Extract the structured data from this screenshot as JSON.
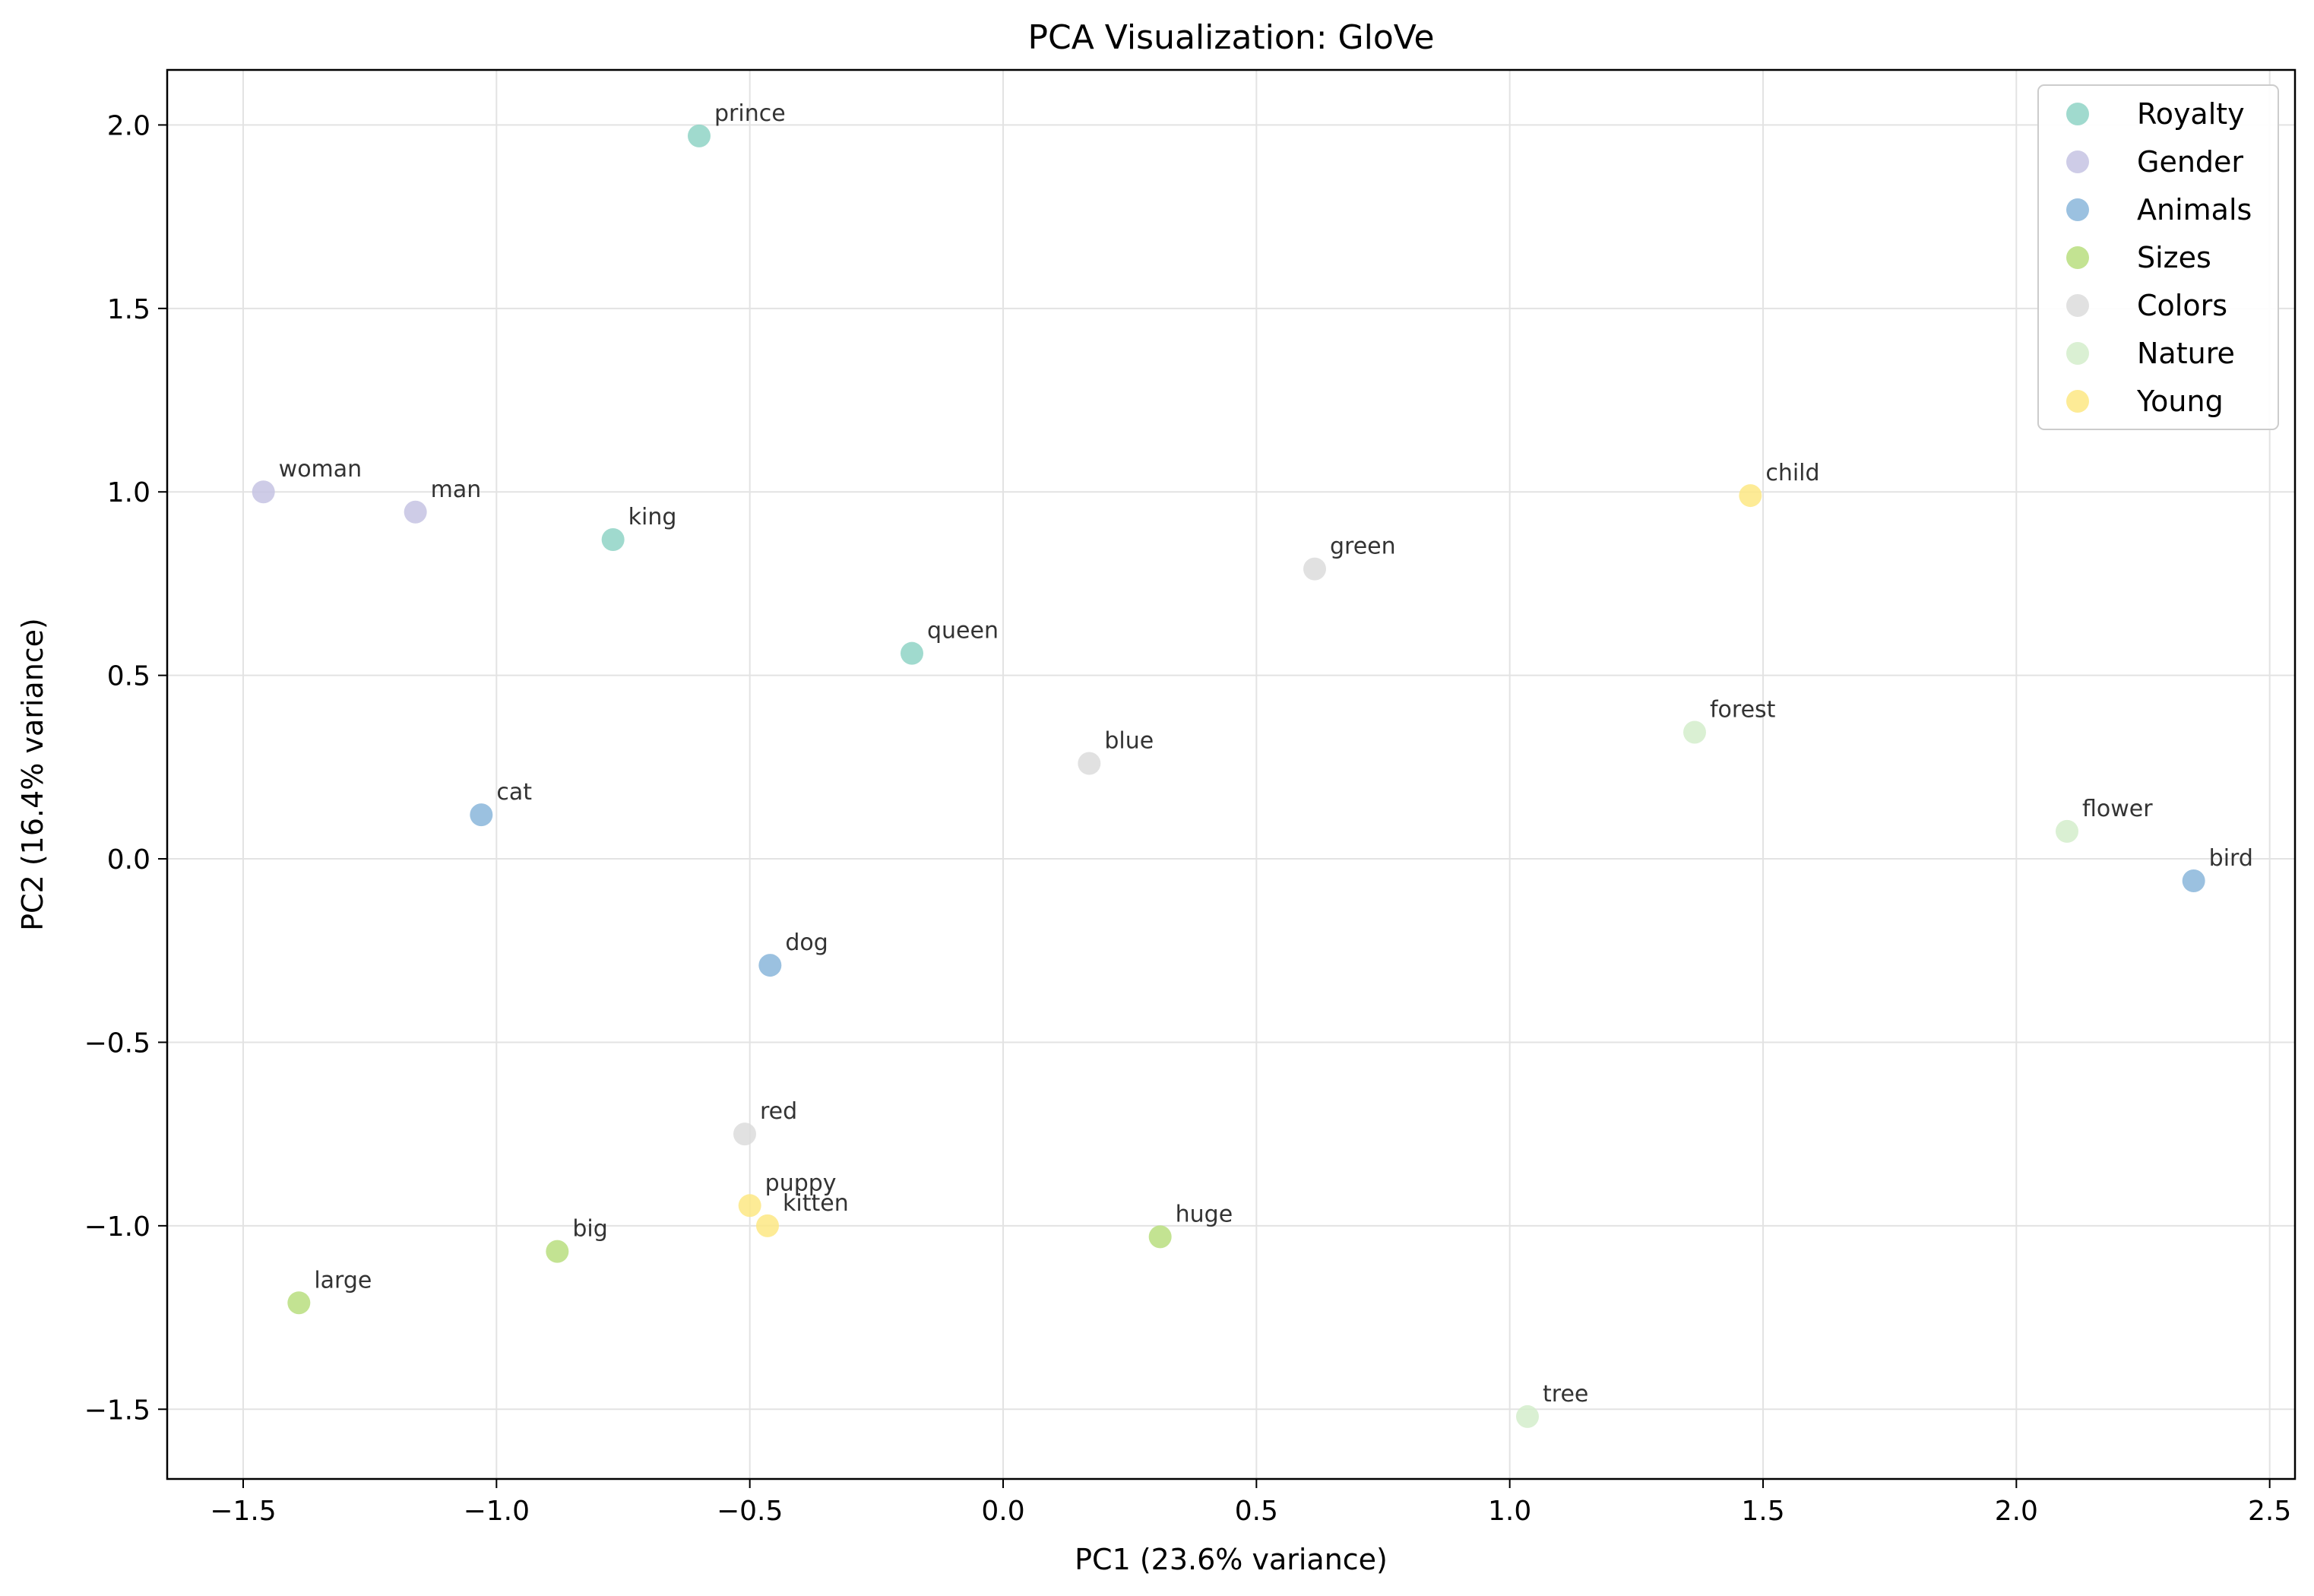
{
  "chart_data": {
    "type": "scatter",
    "title": "PCA Visualization: GloVe",
    "xlabel": "PC1 (23.6% variance)",
    "ylabel": "PC2 (16.4% variance)",
    "xlim": [
      -1.65,
      2.55
    ],
    "ylim": [
      -1.69,
      2.15
    ],
    "xticks": [
      -1.5,
      -1.0,
      -0.5,
      0.0,
      0.5,
      1.0,
      1.5,
      2.0,
      2.5
    ],
    "xtick_labels": [
      "−1.5",
      "−1.0",
      "−0.5",
      "0.0",
      "0.5",
      "1.0",
      "1.5",
      "2.0",
      "2.5"
    ],
    "yticks": [
      -1.5,
      -1.0,
      -0.5,
      0.0,
      0.5,
      1.0,
      1.5,
      2.0
    ],
    "ytick_labels": [
      "−1.5",
      "−1.0",
      "−0.5",
      "0.0",
      "0.5",
      "1.0",
      "1.5",
      "2.0"
    ],
    "grid": true,
    "legend_position": "top-right",
    "series": [
      {
        "name": "Royalty",
        "color": "#8fd3c5",
        "points": [
          {
            "label": "prince",
            "x": -0.6,
            "y": 1.97
          },
          {
            "label": "king",
            "x": -0.77,
            "y": 0.87
          },
          {
            "label": "queen",
            "x": -0.18,
            "y": 0.56
          }
        ]
      },
      {
        "name": "Gender",
        "color": "#c5c3e3",
        "points": [
          {
            "label": "woman",
            "x": -1.46,
            "y": 1.0
          },
          {
            "label": "man",
            "x": -1.16,
            "y": 0.945
          }
        ]
      },
      {
        "name": "Animals",
        "color": "#8ab6db",
        "points": [
          {
            "label": "cat",
            "x": -1.03,
            "y": 0.12
          },
          {
            "label": "dog",
            "x": -0.46,
            "y": -0.29
          },
          {
            "label": "bird",
            "x": 2.35,
            "y": -0.06
          }
        ]
      },
      {
        "name": "Sizes",
        "color": "#b8de7f",
        "points": [
          {
            "label": "big",
            "x": -0.88,
            "y": -1.07
          },
          {
            "label": "large",
            "x": -1.39,
            "y": -1.21
          },
          {
            "label": "huge",
            "x": 0.31,
            "y": -1.03
          }
        ]
      },
      {
        "name": "Colors",
        "color": "#dcdcdc",
        "points": [
          {
            "label": "green",
            "x": 0.615,
            "y": 0.79
          },
          {
            "label": "blue",
            "x": 0.17,
            "y": 0.26
          },
          {
            "label": "red",
            "x": -0.51,
            "y": -0.75
          }
        ]
      },
      {
        "name": "Nature",
        "color": "#d4edcb",
        "points": [
          {
            "label": "forest",
            "x": 1.365,
            "y": 0.345
          },
          {
            "label": "flower",
            "x": 2.1,
            "y": 0.075
          },
          {
            "label": "tree",
            "x": 1.035,
            "y": -1.52
          }
        ]
      },
      {
        "name": "Young",
        "color": "#fde884",
        "points": [
          {
            "label": "child",
            "x": 1.475,
            "y": 0.99
          },
          {
            "label": "puppy",
            "x": -0.5,
            "y": -0.945
          },
          {
            "label": "kitten",
            "x": -0.465,
            "y": -1.0
          }
        ]
      }
    ]
  }
}
